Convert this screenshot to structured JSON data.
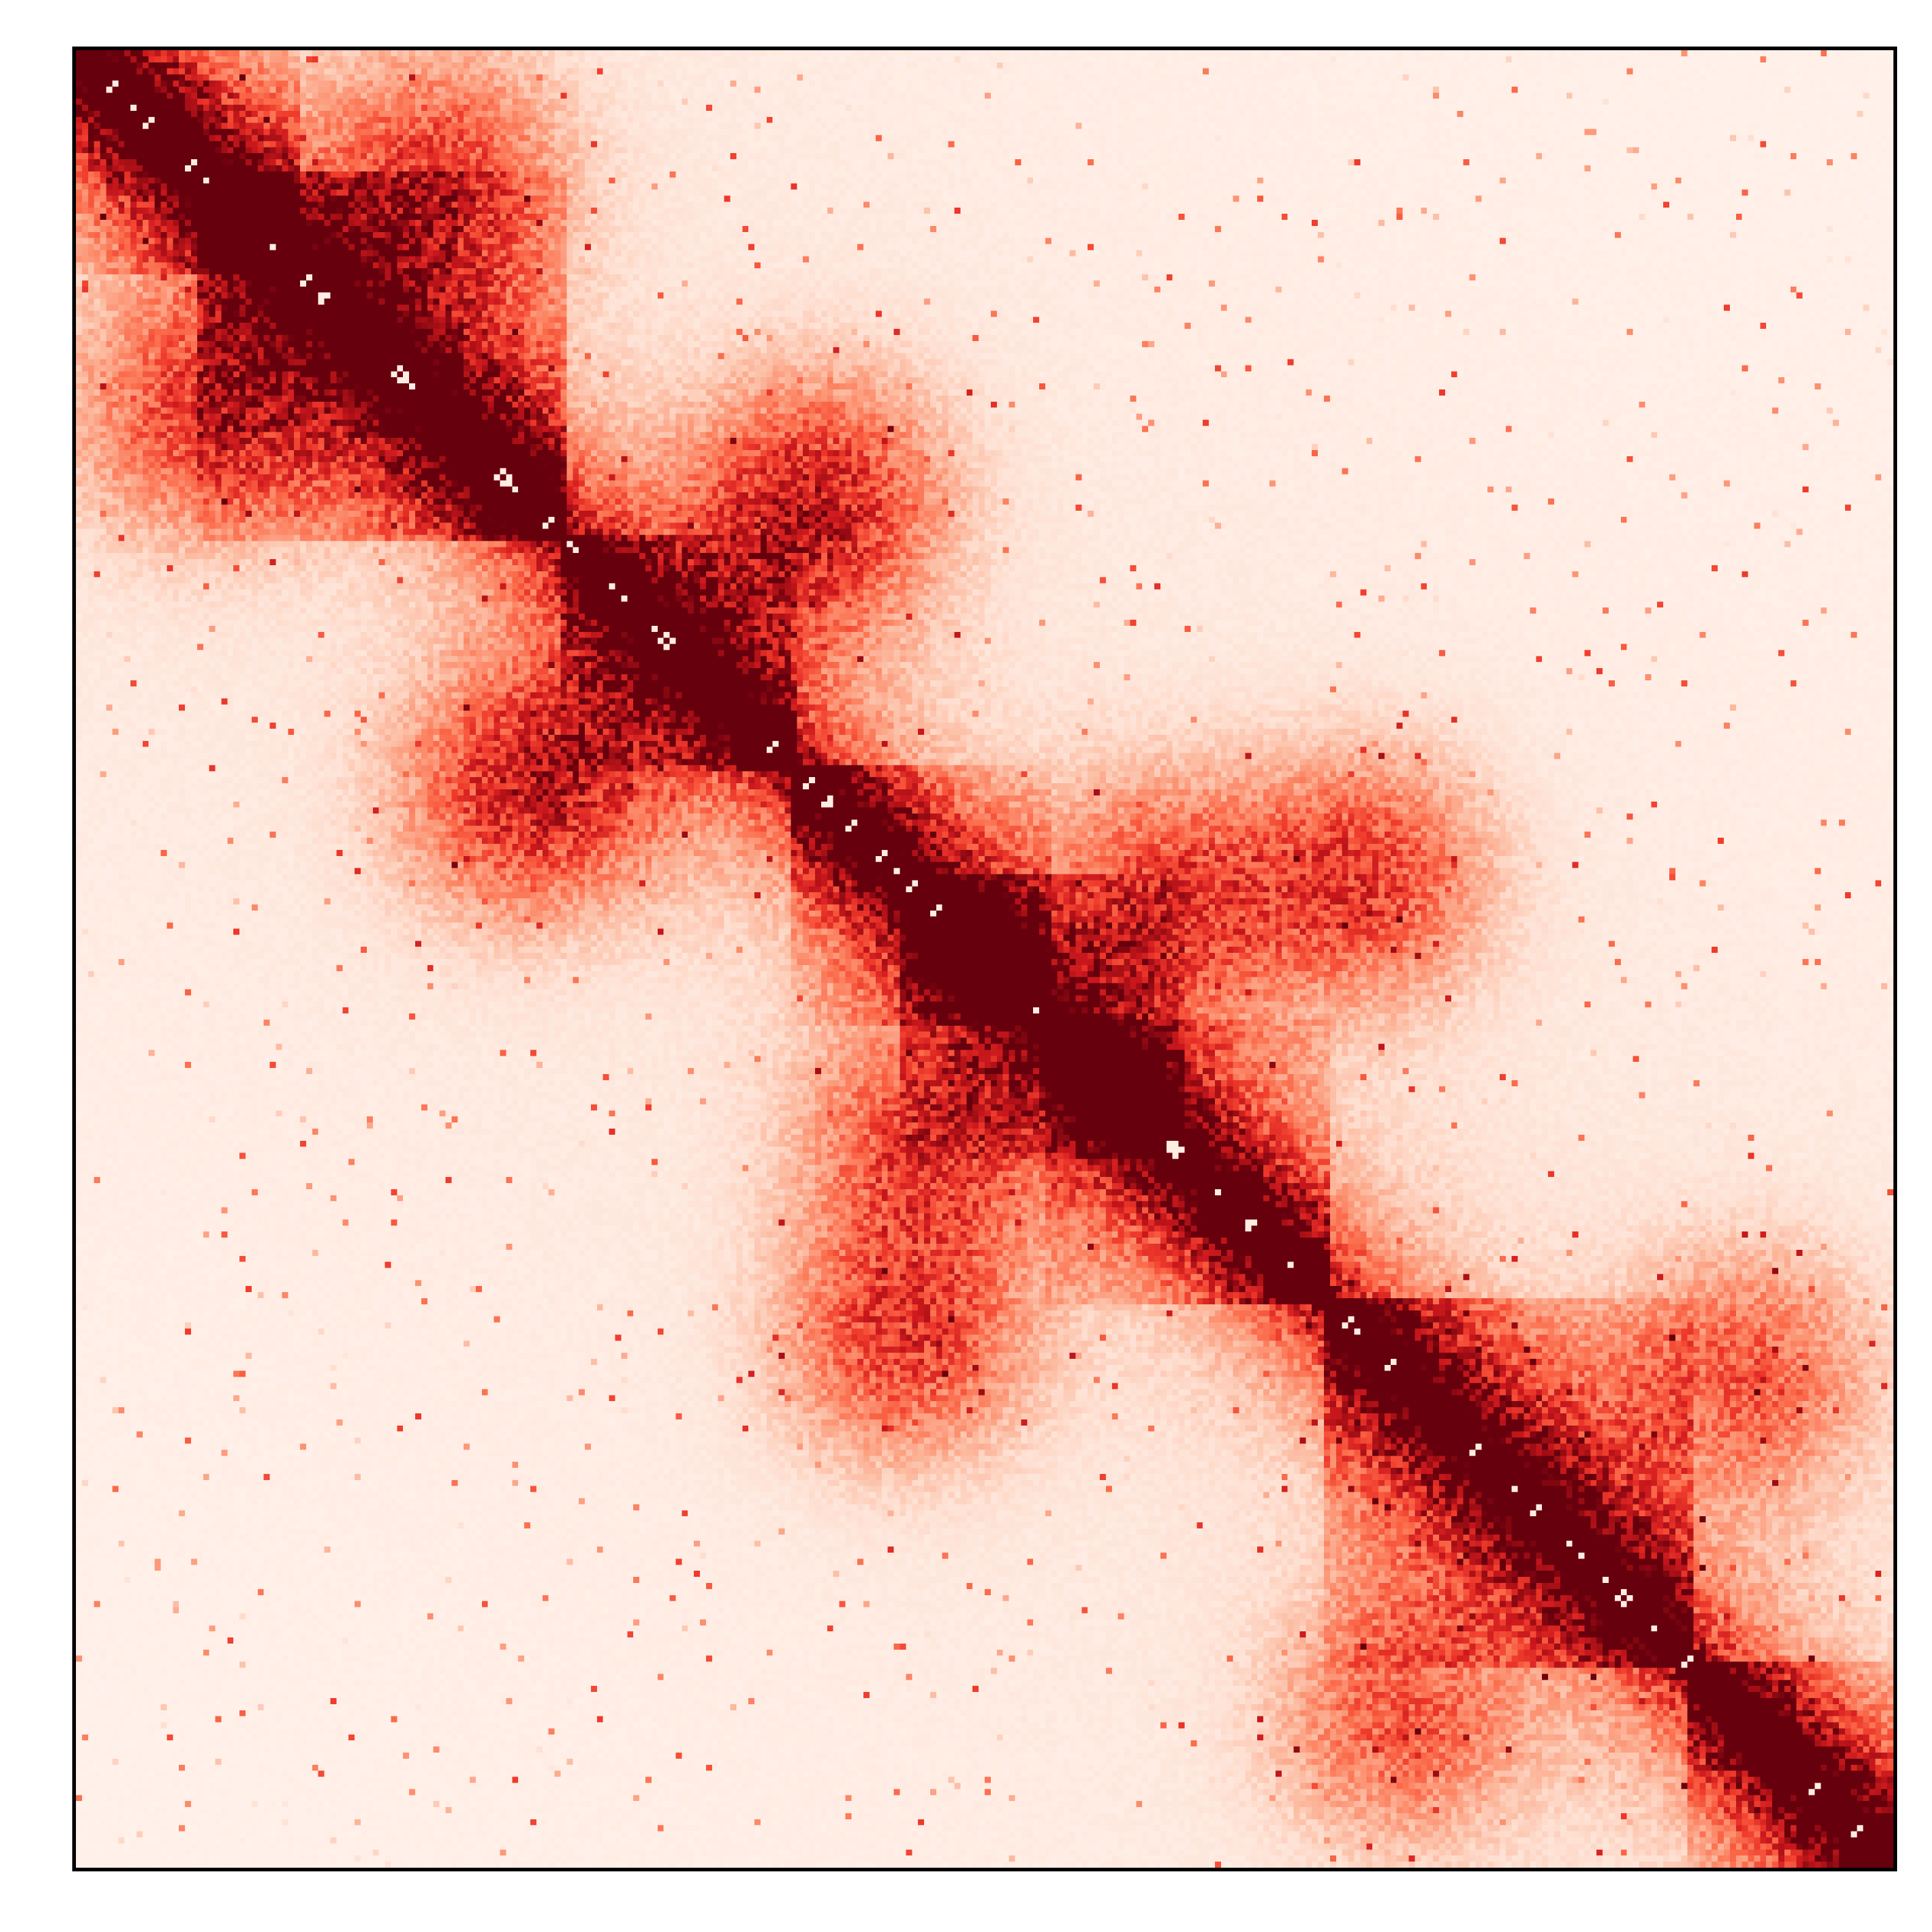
{
  "chart_data": {
    "type": "heatmap",
    "title": "",
    "xlabel": "",
    "ylabel": "",
    "x_ticks": [],
    "y_ticks": [],
    "legend": "none",
    "grid": false,
    "symmetric": true,
    "matrix_bins": 300,
    "colormap": {
      "name": "Reds",
      "stops": [
        "#fff5f0",
        "#fee0d2",
        "#fcbba1",
        "#fc9272",
        "#fb6a4a",
        "#ef3b2c",
        "#cb181d",
        "#a50f15",
        "#67000d"
      ]
    },
    "value_range": [
      0,
      1
    ],
    "diagonal": {
      "band_intensity": 0.98,
      "decay_length_bins": 14
    },
    "domains": [
      {
        "start": 0,
        "end": 36,
        "strength": 0.8
      },
      {
        "start": 20,
        "end": 80,
        "strength": 0.72
      },
      {
        "start": 80,
        "end": 118,
        "strength": 0.62
      },
      {
        "start": 118,
        "end": 160,
        "strength": 0.58
      },
      {
        "start": 136,
        "end": 182,
        "strength": 0.55
      },
      {
        "start": 160,
        "end": 206,
        "strength": 0.6
      },
      {
        "start": 206,
        "end": 266,
        "strength": 0.62
      },
      {
        "start": 266,
        "end": 300,
        "strength": 0.7
      }
    ],
    "focal_contacts": [
      {
        "x": 60,
        "y": 20,
        "strength": 0.5
      },
      {
        "x": 118,
        "y": 80,
        "strength": 0.45
      },
      {
        "x": 212,
        "y": 136,
        "strength": 0.55
      },
      {
        "x": 180,
        "y": 140,
        "strength": 0.5
      },
      {
        "x": 275,
        "y": 218,
        "strength": 0.45
      },
      {
        "x": 125,
        "y": 70,
        "strength": 0.3
      }
    ],
    "background_level": 0.1,
    "noise_level": 0.3
  }
}
